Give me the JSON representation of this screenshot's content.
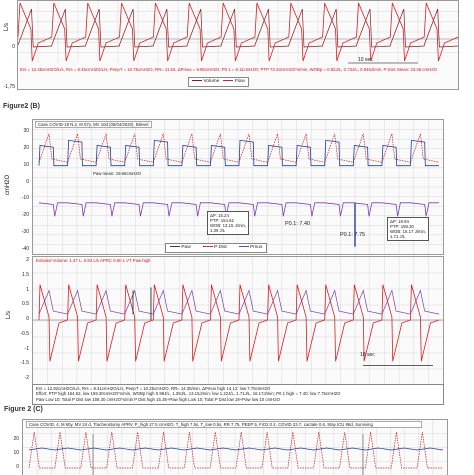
{
  "top_panel": {
    "ylabel": "L/s",
    "yticks": [
      "0",
      "-1,75"
    ],
    "params": "Ers = 12.45cmH2O/L/s, Rrs = 8.45cmH2O/L/s, PeepT = 10.75cmH2O, RR= 11.53, ΔPmus = 9.95cmH2O, P0.1 = 8.11cmH2O, PTP 73.43cmH2O*s/min, WOBp = 0.82J/L, 0.73J/L, 0.946J/min,  P Dist. Mean: 23.36 cmH2O",
    "scale_label": "10 sec",
    "legend": [
      "Volume",
      "Flow"
    ]
  },
  "figure_b": {
    "label": "Figure2 (B)",
    "case_text": "Case COVID-19 N.2, M 57y, MV 10d (05/04/2020), Bilevel",
    "pressure_panel": {
      "ylabel": "cmH2O",
      "yticks": [
        "30",
        "20",
        "10",
        "0",
        "-10",
        "-20",
        "-30",
        "-40"
      ],
      "paw_mean": "Paw mean: 19.66cmH2O",
      "annot1": [
        "ΔP: 15.24",
        "PTP: 154.62",
        "WOB: 13.15 J/min,",
        "1.39 J/L"
      ],
      "p01_a": "P0.1: 7.40",
      "p01_b": "P0.1: 7.75",
      "annot2": [
        "ΔP: 18.94",
        "PTP: 159.30",
        "WOB: 16.17 J/min,",
        "1.71 J/L"
      ],
      "legend": [
        "Paw",
        "P Dist",
        "Pmus"
      ]
    },
    "flow_panel": {
      "ylabel": "L/s",
      "yticks": [
        "2",
        "1.5",
        "1",
        "0.5",
        "0",
        "-0.5",
        "-1",
        "-1.5",
        "-2"
      ],
      "header": "Exhaled Volume: 1.47 L,  0.83 L/s APRC 0.60 L VT Paw high",
      "scale_label": "10 sec"
    },
    "footer": [
      "Ers = 12.82cmH2O/L/s, Rrs = 8.41cmH2O/L/s, PeepT = 10.25cmH2O, RR= 14.35/min, ΔPmus high 14.12; low  7.75cmH2O",
      "Effort: PTP high 154.62, low 159.30cmH2O*s/min, WOBp high 0.99J/L, 1.39J/L, 13.15J/min; low  1.22J/L, 1.71J/L, 16.17J/min; P0.1 high = 7.40; low  7.75cmH2O",
      "Paw Low 10; Total P Dist low 159.30 cmH2O*s/min    P Dist high 15.35+Paw high Low 10; Total P Dist low 19+Paw low 10 cmH2O"
    ]
  },
  "figure_c": {
    "label": "Figure 2 (C)",
    "case_text": "Case COVID, 4, M 60y, MV 24 d, Tracheostomy APRV, P_high 27.5 cmH2O, T_high 7.5s, T_low 0.5s, RR 7.75, PEEP 5, FiO2 0.4, COVID 23.7, Lactate 0.6, Stay ICU 86d, Surviving",
    "yticks": [
      "20",
      "10",
      "0"
    ]
  },
  "chart_data": [
    {
      "type": "line",
      "title": "",
      "ylabel": "L/s",
      "series": [
        {
          "name": "Volume"
        },
        {
          "name": "Flow"
        }
      ],
      "breaths": 13,
      "ylim": [
        -1.75,
        1.75
      ]
    },
    {
      "type": "line",
      "title": "Figure2 (B) - pressures",
      "ylabel": "cmH2O",
      "ylim": [
        -40,
        30
      ],
      "series": [
        {
          "name": "Paw",
          "high": 25,
          "low": 10
        },
        {
          "name": "P Dist",
          "peak": 30
        },
        {
          "name": "Pmus",
          "min": -15
        }
      ],
      "breaths": 14
    },
    {
      "type": "line",
      "title": "Figure2 (B) - flow",
      "ylabel": "L/s",
      "ylim": [
        -2,
        2
      ],
      "breaths": 14
    },
    {
      "type": "line",
      "title": "Figure 2 (C)",
      "ylim": [
        0,
        20
      ],
      "breaths": 16
    }
  ],
  "colors": {
    "flow": "#d61f26",
    "volume": "#8b1a1a",
    "paw": "#1f3f9b",
    "pdist": "#c8181c",
    "pmus": "#7b3fb0",
    "grid": "#d8d8d8"
  }
}
